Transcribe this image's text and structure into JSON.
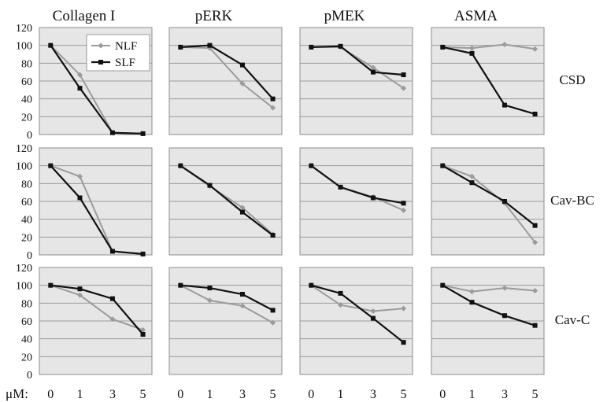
{
  "colors": {
    "panel_bg": "#e6e6e6",
    "grid": "#9a9a9a",
    "NLF": "#9b9b9b",
    "SLF": "#111111"
  },
  "x_axis_label": "μM:",
  "chart_data": {
    "type": "line",
    "layout": "grid 3 rows x 4 columns",
    "x": [
      0,
      1,
      3,
      5
    ],
    "x_tick_labels": [
      "0",
      "1",
      "3",
      "5"
    ],
    "ylim": [
      0,
      120
    ],
    "y_ticks": [
      0,
      20,
      40,
      60,
      80,
      100,
      120
    ],
    "grid": true,
    "legend": {
      "placement": "top-right of first panel",
      "entries": [
        "NLF",
        "SLF"
      ]
    },
    "columns": [
      "Collagen I",
      "pERK",
      "pMEK",
      "ASMA"
    ],
    "rows": [
      "CSD",
      "Cav-BC",
      "Cav-C"
    ],
    "panels": [
      {
        "row": "CSD",
        "column": "Collagen I",
        "series": [
          {
            "name": "NLF",
            "values": [
              100,
              67,
              2,
              1
            ]
          },
          {
            "name": "SLF",
            "values": [
              100,
              52,
              2,
              1
            ]
          }
        ]
      },
      {
        "row": "CSD",
        "column": "pERK",
        "series": [
          {
            "name": "NLF",
            "values": [
              98,
              97,
              57,
              30
            ]
          },
          {
            "name": "SLF",
            "values": [
              98,
              100,
              78,
              40
            ]
          }
        ]
      },
      {
        "row": "CSD",
        "column": "pMEK",
        "series": [
          {
            "name": "NLF",
            "values": [
              98,
              98,
              75,
              52
            ]
          },
          {
            "name": "SLF",
            "values": [
              98,
              99,
              70,
              67
            ]
          }
        ]
      },
      {
        "row": "CSD",
        "column": "ASMA",
        "series": [
          {
            "name": "NLF",
            "values": [
              98,
              97,
              101,
              96
            ]
          },
          {
            "name": "SLF",
            "values": [
              98,
              91,
              33,
              23
            ]
          }
        ]
      },
      {
        "row": "Cav-BC",
        "column": "Collagen I",
        "series": [
          {
            "name": "NLF",
            "values": [
              100,
              88,
              4,
              1
            ]
          },
          {
            "name": "SLF",
            "values": [
              100,
              64,
              4,
              1
            ]
          }
        ]
      },
      {
        "row": "Cav-BC",
        "column": "pERK",
        "series": [
          {
            "name": "NLF",
            "values": [
              100,
              77,
              53,
              23
            ]
          },
          {
            "name": "SLF",
            "values": [
              100,
              78,
              48,
              22
            ]
          }
        ]
      },
      {
        "row": "Cav-BC",
        "column": "pMEK",
        "series": [
          {
            "name": "NLF",
            "values": [
              100,
              76,
              65,
              50
            ]
          },
          {
            "name": "SLF",
            "values": [
              100,
              76,
              64,
              58
            ]
          }
        ]
      },
      {
        "row": "Cav-BC",
        "column": "ASMA",
        "series": [
          {
            "name": "NLF",
            "values": [
              100,
              88,
              58,
              14
            ]
          },
          {
            "name": "SLF",
            "values": [
              100,
              81,
              60,
              33
            ]
          }
        ]
      },
      {
        "row": "Cav-C",
        "column": "Collagen I",
        "series": [
          {
            "name": "NLF",
            "values": [
              100,
              89,
              62,
              50
            ]
          },
          {
            "name": "SLF",
            "values": [
              100,
              96,
              85,
              45
            ]
          }
        ]
      },
      {
        "row": "Cav-C",
        "column": "pERK",
        "series": [
          {
            "name": "NLF",
            "values": [
              100,
              83,
              77,
              58
            ]
          },
          {
            "name": "SLF",
            "values": [
              100,
              97,
              90,
              72
            ]
          }
        ]
      },
      {
        "row": "Cav-C",
        "column": "pMEK",
        "series": [
          {
            "name": "NLF",
            "values": [
              100,
              78,
              71,
              74
            ]
          },
          {
            "name": "SLF",
            "values": [
              100,
              91,
              63,
              36
            ]
          }
        ]
      },
      {
        "row": "Cav-C",
        "column": "ASMA",
        "series": [
          {
            "name": "NLF",
            "values": [
              100,
              93,
              97,
              94
            ]
          },
          {
            "name": "SLF",
            "values": [
              100,
              81,
              66,
              55
            ]
          }
        ]
      }
    ]
  }
}
